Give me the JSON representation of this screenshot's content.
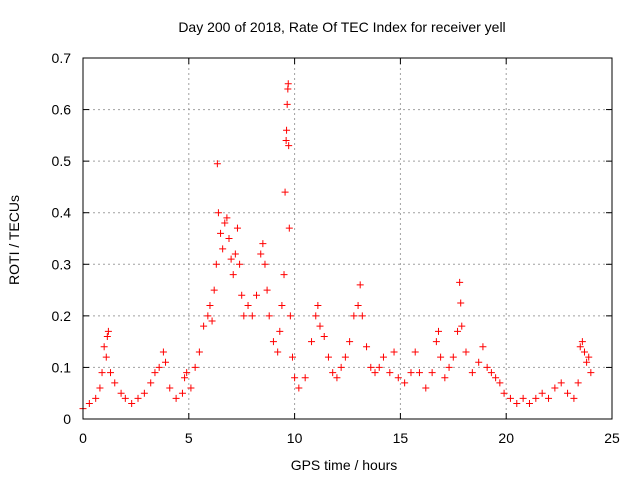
{
  "chart_data": {
    "type": "scatter",
    "title": "Day 200 of 2018, Rate Of TEC Index for receiver yell",
    "xlabel": "GPS time / hours",
    "ylabel": "ROTI / TECUs",
    "xlim": [
      0,
      25
    ],
    "ylim": [
      0,
      0.7
    ],
    "x_ticks": [
      0,
      5,
      10,
      15,
      20,
      25
    ],
    "y_ticks": [
      0,
      0.1,
      0.2,
      0.3,
      0.4,
      0.5,
      0.6,
      0.7
    ],
    "grid": true,
    "marker": "+",
    "color": "#ff0000",
    "series": [
      {
        "name": "ROTI",
        "points": [
          [
            0.0,
            0.02
          ],
          [
            0.3,
            0.03
          ],
          [
            0.6,
            0.04
          ],
          [
            0.8,
            0.06
          ],
          [
            0.9,
            0.09
          ],
          [
            1.0,
            0.14
          ],
          [
            1.1,
            0.12
          ],
          [
            1.15,
            0.16
          ],
          [
            1.2,
            0.17
          ],
          [
            1.3,
            0.09
          ],
          [
            1.5,
            0.07
          ],
          [
            1.8,
            0.05
          ],
          [
            2.0,
            0.04
          ],
          [
            2.3,
            0.03
          ],
          [
            2.6,
            0.04
          ],
          [
            2.9,
            0.05
          ],
          [
            3.2,
            0.07
          ],
          [
            3.4,
            0.09
          ],
          [
            3.6,
            0.1
          ],
          [
            3.8,
            0.13
          ],
          [
            3.9,
            0.11
          ],
          [
            4.1,
            0.06
          ],
          [
            4.4,
            0.04
          ],
          [
            4.7,
            0.05
          ],
          [
            4.8,
            0.08
          ],
          [
            4.9,
            0.09
          ],
          [
            5.1,
            0.06
          ],
          [
            5.3,
            0.1
          ],
          [
            5.5,
            0.13
          ],
          [
            5.7,
            0.18
          ],
          [
            5.9,
            0.2
          ],
          [
            6.0,
            0.22
          ],
          [
            6.1,
            0.19
          ],
          [
            6.2,
            0.25
          ],
          [
            6.3,
            0.3
          ],
          [
            6.35,
            0.495
          ],
          [
            6.4,
            0.4
          ],
          [
            6.5,
            0.36
          ],
          [
            6.6,
            0.33
          ],
          [
            6.7,
            0.38
          ],
          [
            6.8,
            0.39
          ],
          [
            6.9,
            0.35
          ],
          [
            7.0,
            0.31
          ],
          [
            7.1,
            0.28
          ],
          [
            7.2,
            0.32
          ],
          [
            7.3,
            0.37
          ],
          [
            7.4,
            0.3
          ],
          [
            7.5,
            0.24
          ],
          [
            7.6,
            0.2
          ],
          [
            7.8,
            0.22
          ],
          [
            8.0,
            0.2
          ],
          [
            8.2,
            0.24
          ],
          [
            8.4,
            0.32
          ],
          [
            8.5,
            0.34
          ],
          [
            8.6,
            0.3
          ],
          [
            8.7,
            0.25
          ],
          [
            8.8,
            0.2
          ],
          [
            9.0,
            0.15
          ],
          [
            9.2,
            0.13
          ],
          [
            9.3,
            0.17
          ],
          [
            9.4,
            0.22
          ],
          [
            9.5,
            0.28
          ],
          [
            9.55,
            0.44
          ],
          [
            9.6,
            0.54
          ],
          [
            9.62,
            0.56
          ],
          [
            9.65,
            0.61
          ],
          [
            9.68,
            0.64
          ],
          [
            9.7,
            0.65
          ],
          [
            9.72,
            0.53
          ],
          [
            9.75,
            0.37
          ],
          [
            9.8,
            0.2
          ],
          [
            9.9,
            0.12
          ],
          [
            10.0,
            0.08
          ],
          [
            10.2,
            0.06
          ],
          [
            10.5,
            0.08
          ],
          [
            10.8,
            0.15
          ],
          [
            11.0,
            0.2
          ],
          [
            11.1,
            0.22
          ],
          [
            11.2,
            0.18
          ],
          [
            11.4,
            0.16
          ],
          [
            11.6,
            0.12
          ],
          [
            11.8,
            0.09
          ],
          [
            12.0,
            0.08
          ],
          [
            12.2,
            0.1
          ],
          [
            12.4,
            0.12
          ],
          [
            12.6,
            0.15
          ],
          [
            12.8,
            0.2
          ],
          [
            13.0,
            0.22
          ],
          [
            13.1,
            0.26
          ],
          [
            13.2,
            0.2
          ],
          [
            13.4,
            0.14
          ],
          [
            13.6,
            0.1
          ],
          [
            13.8,
            0.09
          ],
          [
            14.0,
            0.1
          ],
          [
            14.2,
            0.12
          ],
          [
            14.5,
            0.09
          ],
          [
            14.7,
            0.13
          ],
          [
            14.9,
            0.08
          ],
          [
            15.2,
            0.07
          ],
          [
            15.5,
            0.09
          ],
          [
            15.7,
            0.13
          ],
          [
            15.9,
            0.09
          ],
          [
            16.2,
            0.06
          ],
          [
            16.5,
            0.09
          ],
          [
            16.7,
            0.15
          ],
          [
            16.8,
            0.17
          ],
          [
            16.9,
            0.12
          ],
          [
            17.1,
            0.08
          ],
          [
            17.3,
            0.1
          ],
          [
            17.5,
            0.12
          ],
          [
            17.7,
            0.17
          ],
          [
            17.8,
            0.265
          ],
          [
            17.85,
            0.225
          ],
          [
            17.9,
            0.18
          ],
          [
            18.1,
            0.13
          ],
          [
            18.4,
            0.09
          ],
          [
            18.7,
            0.11
          ],
          [
            18.9,
            0.14
          ],
          [
            19.1,
            0.1
          ],
          [
            19.3,
            0.09
          ],
          [
            19.5,
            0.08
          ],
          [
            19.7,
            0.07
          ],
          [
            19.9,
            0.05
          ],
          [
            20.2,
            0.04
          ],
          [
            20.5,
            0.03
          ],
          [
            20.8,
            0.04
          ],
          [
            21.1,
            0.03
          ],
          [
            21.4,
            0.04
          ],
          [
            21.7,
            0.05
          ],
          [
            22.0,
            0.04
          ],
          [
            22.3,
            0.06
          ],
          [
            22.6,
            0.07
          ],
          [
            22.9,
            0.05
          ],
          [
            23.2,
            0.04
          ],
          [
            23.4,
            0.07
          ],
          [
            23.5,
            0.14
          ],
          [
            23.6,
            0.15
          ],
          [
            23.7,
            0.13
          ],
          [
            23.8,
            0.11
          ],
          [
            23.9,
            0.12
          ],
          [
            24.0,
            0.09
          ]
        ]
      }
    ]
  }
}
